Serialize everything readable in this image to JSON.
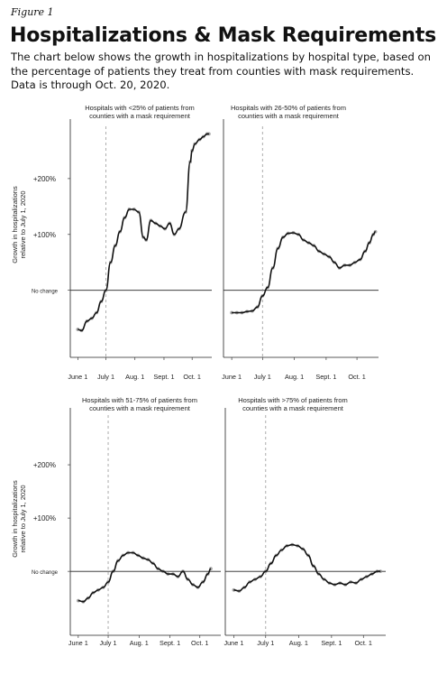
{
  "figure_label": "Figure 1",
  "title": "Hospitalizations & Mask Requirements",
  "subtitle": "The chart below shows the growth in hospitalizations by hospital type, based on the percentage of patients they treat from counties with mask requirements. Data is through Oct. 20, 2020.",
  "y_axis_title_line1": "Growth in hospitalizations",
  "y_axis_title_line2": "relative to July 1, 2020",
  "colors": {
    "line": "#111111",
    "points": "#8a8a8a",
    "reference": "#999999"
  },
  "chart_data": [
    {
      "type": "line",
      "title_line1": "Hospitals with <25% of patients from",
      "title_line2": "counties with a mask requirement",
      "x_ticks": [
        "June 1",
        "July 1",
        "Aug. 1",
        "Sept. 1",
        "Oct. 1"
      ],
      "y_ticks": [
        "+200%",
        "+100%",
        "No change"
      ],
      "y_tick_values": [
        200,
        100,
        0
      ],
      "ylim": [
        -120,
        300
      ],
      "xlim": [
        -38,
        113
      ],
      "reference_line_x": 0,
      "x": [
        -30,
        -26,
        -20,
        -15,
        -10,
        -5,
        0,
        5,
        10,
        15,
        20,
        25,
        30,
        35,
        40,
        43,
        48,
        53,
        58,
        63,
        68,
        73,
        78,
        85,
        90,
        92,
        95,
        100,
        104,
        108,
        110
      ],
      "values": [
        -70,
        -72,
        -55,
        -50,
        -40,
        -20,
        0,
        50,
        80,
        105,
        130,
        145,
        145,
        140,
        95,
        90,
        125,
        120,
        115,
        110,
        120,
        100,
        110,
        140,
        230,
        250,
        262,
        270,
        275,
        280,
        280
      ]
    },
    {
      "type": "line",
      "title_line1": "Hospitals with 26-50% of patients from",
      "title_line2": "counties with a mask requirement",
      "x_ticks": [
        "June 1",
        "July 1",
        "Aug. 1",
        "Sept. 1",
        "Oct. 1"
      ],
      "y_ticks": [],
      "y_tick_values": [
        200,
        100,
        0
      ],
      "ylim": [
        -120,
        300
      ],
      "xlim": [
        -38,
        113
      ],
      "reference_line_x": 0,
      "x": [
        -30,
        -25,
        -20,
        -15,
        -10,
        -5,
        0,
        5,
        10,
        15,
        20,
        25,
        30,
        35,
        40,
        45,
        50,
        55,
        60,
        65,
        70,
        75,
        80,
        85,
        90,
        95,
        100,
        104,
        108,
        110
      ],
      "values": [
        -40,
        -40,
        -40,
        -38,
        -37,
        -30,
        -10,
        5,
        40,
        75,
        95,
        102,
        103,
        100,
        90,
        85,
        80,
        70,
        65,
        60,
        50,
        40,
        45,
        45,
        50,
        55,
        70,
        85,
        100,
        105
      ]
    },
    {
      "type": "line",
      "title_line1": "Hospitals with 51-75% of patients from",
      "title_line2": "counties with a mask requirement",
      "x_ticks": [
        "June 1",
        "July 1",
        "Aug. 1",
        "Sept. 1",
        "Oct. 1"
      ],
      "y_ticks": [
        "+200%",
        "+100%",
        "No change"
      ],
      "y_tick_values": [
        200,
        100,
        0
      ],
      "ylim": [
        -120,
        300
      ],
      "xlim": [
        -38,
        113
      ],
      "reference_line_x": 0,
      "x": [
        -30,
        -25,
        -20,
        -15,
        -10,
        -5,
        0,
        5,
        10,
        15,
        20,
        25,
        30,
        35,
        40,
        45,
        50,
        55,
        60,
        65,
        70,
        75,
        80,
        85,
        90,
        95,
        100,
        103
      ],
      "values": [
        -55,
        -57,
        -50,
        -40,
        -35,
        -30,
        -20,
        0,
        20,
        30,
        35,
        35,
        30,
        25,
        22,
        15,
        5,
        0,
        -5,
        -5,
        -10,
        0,
        -15,
        -25,
        -30,
        -20,
        -5,
        5
      ]
    },
    {
      "type": "line",
      "title_line1": "Hospitals with >75% of patients from",
      "title_line2": "counties with a mask requirement",
      "x_ticks": [
        "June 1",
        "July 1",
        "Aug. 1",
        "Sept. 1",
        "Oct. 1"
      ],
      "y_ticks": [],
      "y_tick_values": [
        200,
        100,
        0
      ],
      "ylim": [
        -120,
        300
      ],
      "xlim": [
        -38,
        113
      ],
      "reference_line_x": 0,
      "x": [
        -30,
        -25,
        -20,
        -15,
        -10,
        -5,
        0,
        5,
        10,
        15,
        20,
        25,
        30,
        35,
        40,
        45,
        50,
        55,
        60,
        65,
        70,
        75,
        80,
        85,
        90,
        95,
        100,
        105,
        108
      ],
      "values": [
        -35,
        -37,
        -30,
        -20,
        -15,
        -10,
        0,
        15,
        30,
        40,
        48,
        50,
        48,
        42,
        30,
        10,
        -5,
        -15,
        -22,
        -25,
        -22,
        -25,
        -20,
        -22,
        -15,
        -10,
        -5,
        0,
        0
      ]
    }
  ]
}
